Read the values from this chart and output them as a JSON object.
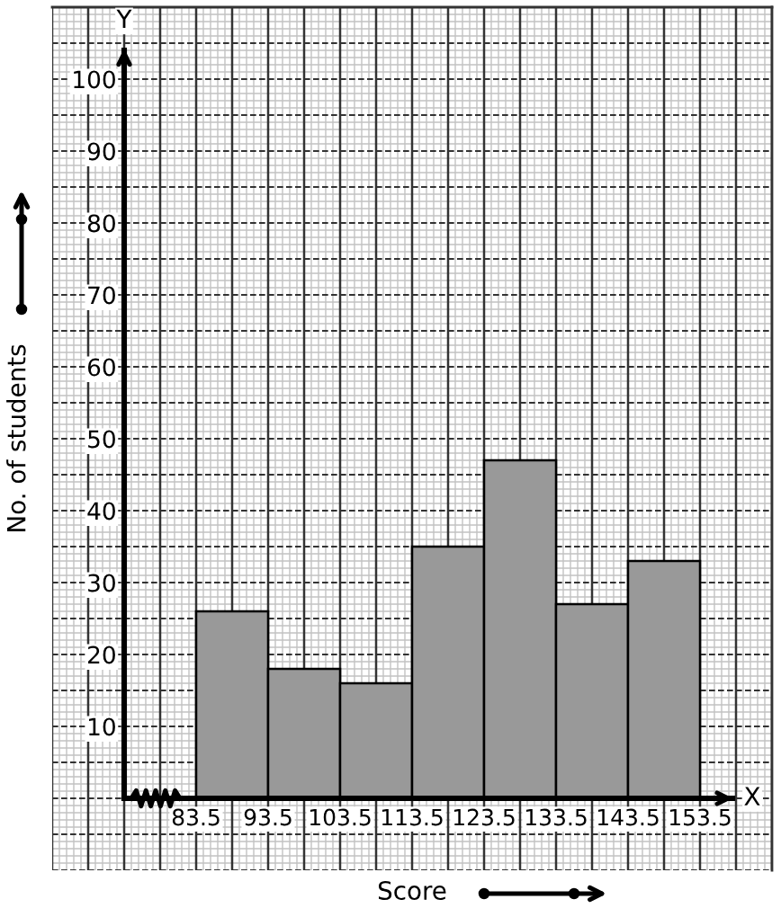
{
  "chart_data": {
    "type": "histogram",
    "xlabel": "Score",
    "ylabel": "No. of students",
    "annotations": [
      "X",
      "Y"
    ],
    "bins": [
      83.5,
      93.5,
      103.5,
      113.5,
      123.5,
      133.5,
      143.5,
      153.5
    ],
    "values": [
      26,
      18,
      16,
      35,
      47,
      27,
      33
    ],
    "color": "#999999",
    "xlim": [
      63.5,
      163.5
    ],
    "ylim": [
      -10,
      110
    ],
    "xticks": [
      83.5,
      93.5,
      103.5,
      113.5,
      123.5,
      133.5,
      143.5,
      153.5
    ],
    "yticks": [
      10,
      20,
      30,
      40,
      50,
      60,
      70,
      80,
      90,
      100
    ],
    "grid": true
  }
}
